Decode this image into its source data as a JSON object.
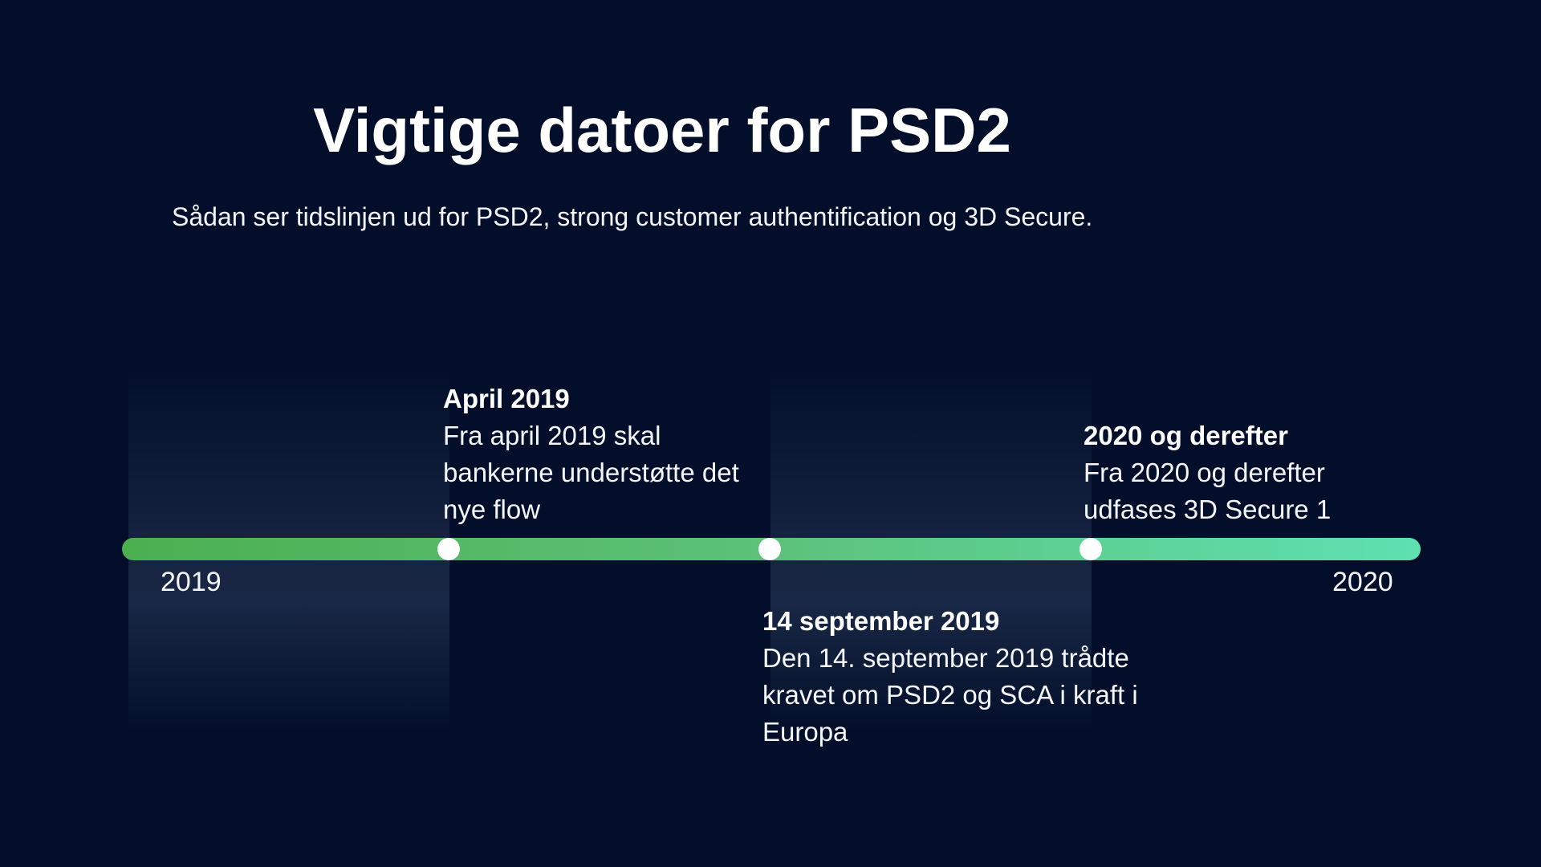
{
  "header": {
    "title": "Vigtige datoer for PSD2",
    "subtitle": "Sådan ser tidslinjen ud for PSD2, strong customer authentification og 3D Secure."
  },
  "timeline": {
    "start_label": "2019",
    "end_label": "2020",
    "colors": {
      "background": "#030f2a",
      "track_start": "#4caf50",
      "track_end": "#5ee0b1",
      "marker": "#ffffff"
    },
    "events": [
      {
        "title": "April 2019",
        "text": "Fra april 2019 skal bankerne understøtte det nye flow"
      },
      {
        "title": "14 september 2019",
        "text": "Den 14. september 2019 trådte kravet om PSD2 og SCA i kraft i Europa"
      },
      {
        "title": "2020 og derefter",
        "text": "Fra 2020 og derefter udfases 3D Secure 1"
      }
    ]
  }
}
